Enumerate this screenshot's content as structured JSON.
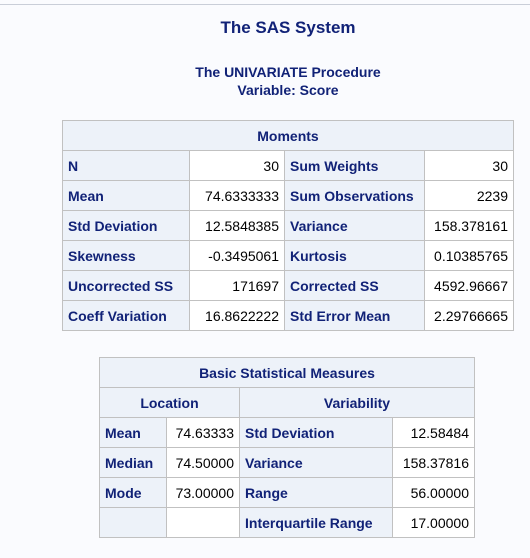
{
  "header": {
    "system_title": "The SAS System",
    "procedure": "The UNIVARIATE Procedure",
    "variable": "Variable: Score"
  },
  "moments": {
    "title": "Moments",
    "rows": [
      {
        "label1": "N",
        "value1": "30",
        "label2": "Sum Weights",
        "value2": "30"
      },
      {
        "label1": "Mean",
        "value1": "74.6333333",
        "label2": "Sum Observations",
        "value2": "2239"
      },
      {
        "label1": "Std Deviation",
        "value1": "12.5848385",
        "label2": "Variance",
        "value2": "158.378161"
      },
      {
        "label1": "Skewness",
        "value1": "-0.3495061",
        "label2": "Kurtosis",
        "value2": "0.10385765"
      },
      {
        "label1": "Uncorrected SS",
        "value1": "171697",
        "label2": "Corrected SS",
        "value2": "4592.96667"
      },
      {
        "label1": "Coeff Variation",
        "value1": "16.8622222",
        "label2": "Std Error Mean",
        "value2": "2.29766665"
      }
    ]
  },
  "basic": {
    "title": "Basic Statistical Measures",
    "location_header": "Location",
    "variability_header": "Variability",
    "rows": [
      {
        "loc_label": "Mean",
        "loc_value": "74.63333",
        "var_label": "Std Deviation",
        "var_value": "12.58484"
      },
      {
        "loc_label": "Median",
        "loc_value": "74.50000",
        "var_label": "Variance",
        "var_value": "158.37816"
      },
      {
        "loc_label": "Mode",
        "loc_value": "73.00000",
        "var_label": "Range",
        "var_value": "56.00000"
      },
      {
        "loc_label": "",
        "loc_value": "",
        "var_label": "Interquartile Range",
        "var_value": "17.00000"
      }
    ]
  }
}
